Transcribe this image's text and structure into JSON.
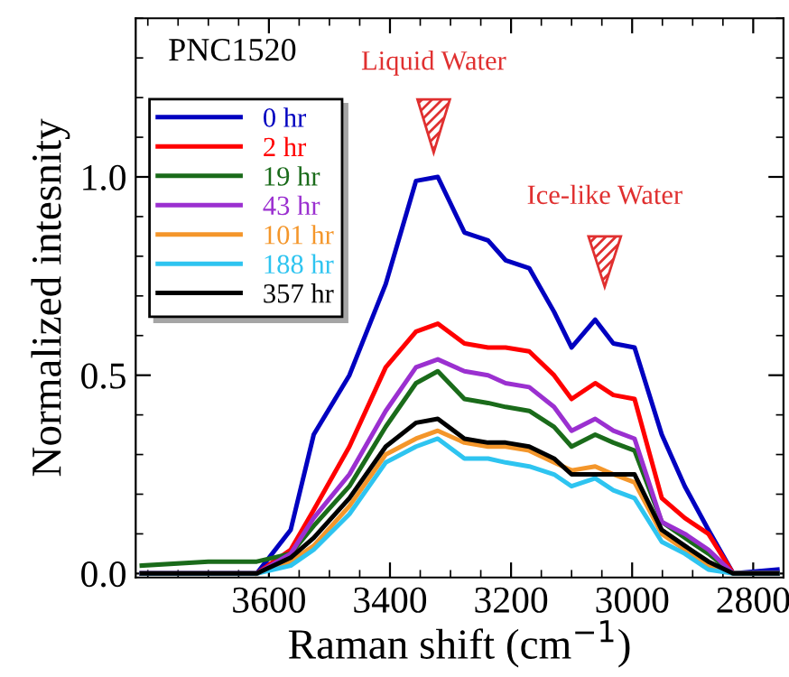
{
  "chart_data": {
    "type": "line",
    "xlabel": "Raman shift (cm$^{−1}$)",
    "ylabel": "Normalized intesnity",
    "x": [
      3810,
      3700,
      3620,
      3564,
      3526,
      3467,
      3407,
      3357,
      3321,
      3277,
      3238,
      3209,
      3170,
      3129,
      3100,
      3061,
      3031,
      2996,
      2951,
      2913,
      2874,
      2833,
      2760
    ],
    "series": [
      {
        "name": "0 hr",
        "color": "#0000c0",
        "values": [
          0,
          0,
          0,
          0.11,
          0.35,
          0.5,
          0.73,
          0.99,
          1.0,
          0.86,
          0.84,
          0.79,
          0.77,
          0.66,
          0.57,
          0.64,
          0.58,
          0.57,
          0.35,
          0.22,
          0.11,
          0.0,
          0.01
        ]
      },
      {
        "name": "2 hr",
        "color": "#ff0000",
        "values": [
          0,
          0,
          0,
          0.06,
          0.16,
          0.32,
          0.52,
          0.61,
          0.63,
          0.58,
          0.57,
          0.57,
          0.56,
          0.5,
          0.44,
          0.48,
          0.45,
          0.44,
          0.19,
          0.14,
          0.1,
          0.0,
          0.0
        ]
      },
      {
        "name": "19 hr",
        "color": "#1a6b1a",
        "values": [
          0.02,
          0.03,
          0.03,
          0.05,
          0.12,
          0.22,
          0.37,
          0.48,
          0.51,
          0.44,
          0.43,
          0.42,
          0.41,
          0.37,
          0.32,
          0.35,
          0.33,
          0.31,
          0.13,
          0.09,
          0.05,
          0.0,
          0.0
        ]
      },
      {
        "name": "43 hr",
        "color": "#9b30d0",
        "values": [
          0,
          0,
          0,
          0.05,
          0.14,
          0.25,
          0.41,
          0.52,
          0.54,
          0.51,
          0.5,
          0.48,
          0.47,
          0.42,
          0.36,
          0.39,
          0.36,
          0.34,
          0.13,
          0.1,
          0.06,
          0.0,
          0.0
        ]
      },
      {
        "name": "101 hr",
        "color": "#f4962a",
        "values": [
          null,
          null,
          0,
          0.03,
          0.07,
          0.17,
          0.3,
          0.34,
          0.36,
          0.33,
          0.32,
          0.32,
          0.31,
          0.28,
          0.26,
          0.27,
          0.25,
          0.23,
          0.1,
          0.06,
          0.02,
          0.0,
          0.0
        ]
      },
      {
        "name": "188 hr",
        "color": "#2ec4f0",
        "values": [
          0,
          0,
          0,
          0.02,
          0.06,
          0.15,
          0.28,
          0.32,
          0.34,
          0.29,
          0.29,
          0.28,
          0.27,
          0.25,
          0.22,
          0.24,
          0.21,
          0.19,
          0.08,
          0.05,
          0.01,
          0.0,
          0.0
        ]
      },
      {
        "name": "357 hr",
        "color": "#000000",
        "values": [
          0,
          0,
          0,
          0.04,
          0.09,
          0.19,
          0.32,
          0.38,
          0.39,
          0.34,
          0.33,
          0.33,
          0.32,
          0.29,
          0.25,
          0.25,
          0.25,
          0.25,
          0.11,
          0.07,
          0.03,
          0.0,
          0.0
        ]
      }
    ],
    "annotations": [
      "PNC1520",
      "Liquid Water",
      "Ice-like Water"
    ],
    "xlim": [
      3820,
      2750
    ],
    "xticks": [
      3600,
      3400,
      3200,
      3000,
      2800
    ],
    "ylim": [
      -0.01,
      1.4
    ],
    "yticks": [
      {
        "value": 0,
        "label": "0.0"
      },
      0.5,
      {
        "value": 1,
        "label": "1.0"
      }
    ],
    "legend": "top left",
    "grid": false,
    "line_style": "solid",
    "marker": "none"
  }
}
